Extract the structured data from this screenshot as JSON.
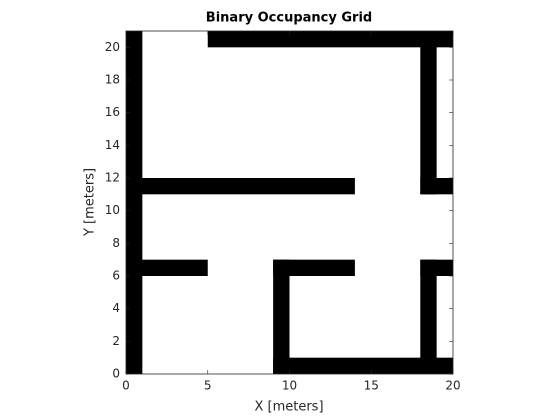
{
  "chart_data": {
    "type": "occupancy-grid",
    "title": "Binary Occupancy Grid",
    "x_label": "X [meters]",
    "y_label": "Y [meters]",
    "xlim": [
      0,
      20
    ],
    "ylim": [
      0,
      21
    ],
    "xticks": [
      0,
      5,
      10,
      15,
      20
    ],
    "yticks": [
      0,
      2,
      4,
      6,
      8,
      10,
      12,
      14,
      16,
      18,
      20
    ],
    "color": "#000000",
    "occupied": [
      {
        "x": [
          0,
          1
        ],
        "y": [
          0,
          21
        ]
      },
      {
        "x": [
          5,
          20
        ],
        "y": [
          20,
          21
        ]
      },
      {
        "x": [
          18,
          19
        ],
        "y": [
          11,
          21
        ]
      },
      {
        "x": [
          18,
          20
        ],
        "y": [
          11,
          12
        ]
      },
      {
        "x": [
          0,
          14
        ],
        "y": [
          11,
          12
        ]
      },
      {
        "x": [
          0,
          5
        ],
        "y": [
          6,
          7
        ]
      },
      {
        "x": [
          9,
          10
        ],
        "y": [
          0,
          7
        ]
      },
      {
        "x": [
          9,
          14
        ],
        "y": [
          6,
          7
        ]
      },
      {
        "x": [
          9,
          20
        ],
        "y": [
          0,
          1
        ]
      },
      {
        "x": [
          18,
          19
        ],
        "y": [
          0,
          7
        ]
      },
      {
        "x": [
          18,
          20
        ],
        "y": [
          6,
          7
        ]
      }
    ]
  }
}
